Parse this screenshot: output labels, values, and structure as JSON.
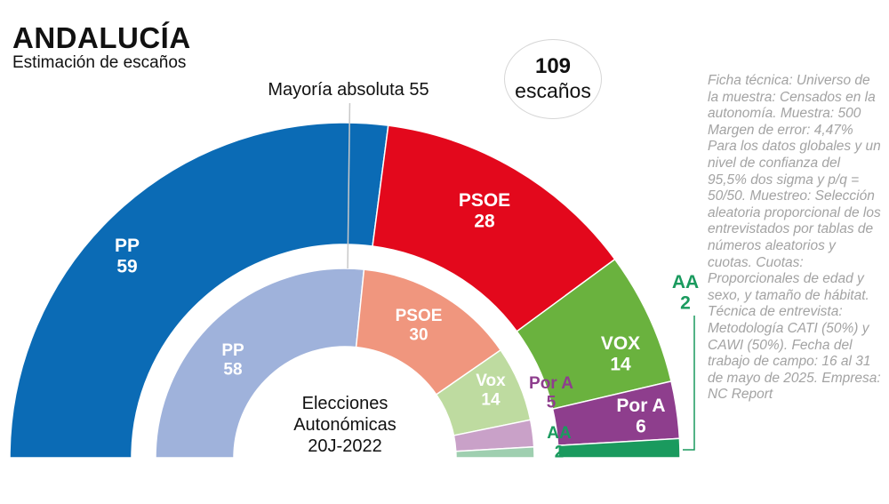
{
  "header": {
    "title": "ANDALUCÍA",
    "subtitle": "Estimación de escaños"
  },
  "total": {
    "number": "109",
    "label": "escaños"
  },
  "majority_label": "Mayoría absoluta 55",
  "center_label": [
    "Elecciones",
    "Autonómicas",
    "20J-2022"
  ],
  "ficha_tecnica": "Ficha técnica: Universo de la muestra: Censados en la autonomía. Muestra: 500 Margen de error: 4,47% Para los datos globales y un nivel de confianza del 95,5% dos sigma y p/q = 50/50. Muestreo: Selección aleatoria proporcional de los entrevistados por tablas de números aleatorios y cuotas. Cuotas: Proporcionales de edad y sexo, y tamaño de hábitat. Técnica de entrevista: Metodología CATI (50%) y CAWI (50%). Fecha del trabajo de campo: 16 al 31 de mayo de 2025. Empresa: NC Report",
  "chart_data": [
    {
      "type": "pie",
      "variant": "half-donut",
      "ring": "outer",
      "total": 109,
      "majority": 55,
      "series": [
        {
          "name": "PP",
          "value": 59,
          "color": "#0b6bb5",
          "label_color": "#ffffff"
        },
        {
          "name": "PSOE",
          "value": 28,
          "color": "#e3081c",
          "label_color": "#ffffff"
        },
        {
          "name": "VOX",
          "value": 14,
          "color": "#6ab23e",
          "label_color": "#ffffff"
        },
        {
          "name": "Por A",
          "value": 6,
          "color": "#8e3e8d",
          "label_color": "#ffffff"
        },
        {
          "name": "AA",
          "value": 2,
          "color": "#1a9a5e",
          "label_color": "#1a9a5e"
        }
      ]
    },
    {
      "type": "pie",
      "variant": "half-donut",
      "ring": "inner",
      "total": 109,
      "series": [
        {
          "name": "PP",
          "value": 58,
          "color": "#9fb2db",
          "label_color": "#ffffff"
        },
        {
          "name": "PSOE",
          "value": 30,
          "color": "#f0967e",
          "label_color": "#ffffff"
        },
        {
          "name": "Vox",
          "value": 14,
          "color": "#bedba0",
          "label_color": "#ffffff"
        },
        {
          "name": "Por A",
          "value": 5,
          "color": "#c9a1c8",
          "label_color": "#8e3e8d"
        },
        {
          "name": "AA",
          "value": 2,
          "color": "#9fcfb0",
          "label_color": "#1a9a5e"
        }
      ]
    }
  ]
}
